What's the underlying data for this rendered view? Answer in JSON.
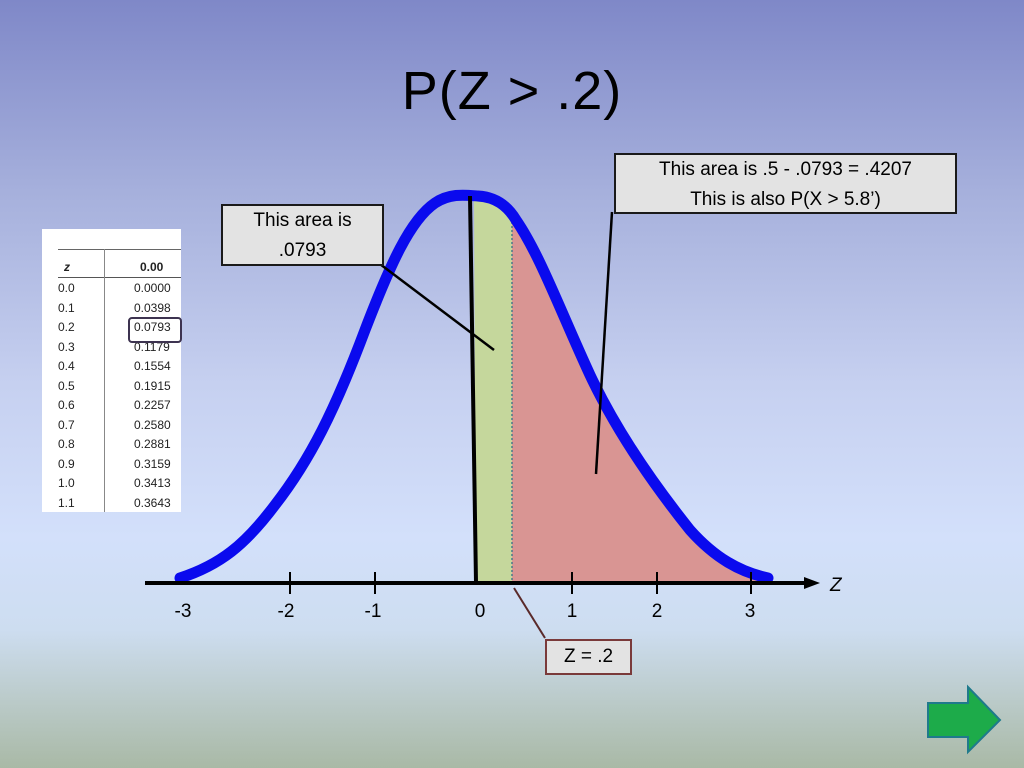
{
  "title": "P(Z > .2)",
  "z_table": {
    "header_z": "z",
    "header_value": "0.00",
    "rows": [
      {
        "z": "0.0",
        "value": "0.0000"
      },
      {
        "z": "0.1",
        "value": "0.0398"
      },
      {
        "z": "0.2",
        "value": "0.0793"
      },
      {
        "z": "0.3",
        "value": "0.1179"
      },
      {
        "z": "0.4",
        "value": "0.1554"
      },
      {
        "z": "0.5",
        "value": "0.1915"
      },
      {
        "z": "0.6",
        "value": "0.2257"
      },
      {
        "z": "0.7",
        "value": "0.2580"
      },
      {
        "z": "0.8",
        "value": "0.2881"
      },
      {
        "z": "0.9",
        "value": "0.3159"
      },
      {
        "z": "1.0",
        "value": "0.3413"
      },
      {
        "z": "1.1",
        "value": "0.3643"
      }
    ],
    "highlighted_row": 2
  },
  "callouts": {
    "left_line1": "This area is",
    "left_line2": ".0793",
    "right_line1": "This area is .5 - .0793 = .4207",
    "right_line2": "This is also P(X > 5.8’)",
    "z_marker": "Z = .2"
  },
  "axis": {
    "label": "Z",
    "ticks": [
      "-3",
      "-2",
      "-1",
      "0",
      "1",
      "2",
      "3"
    ]
  },
  "colors": {
    "curve": "#0a0aee",
    "area_left": "#c5d79c",
    "area_right": "#d99593",
    "next_arrow": "#1dab4a"
  },
  "icons": {
    "next_button": "right-arrow-icon"
  }
}
